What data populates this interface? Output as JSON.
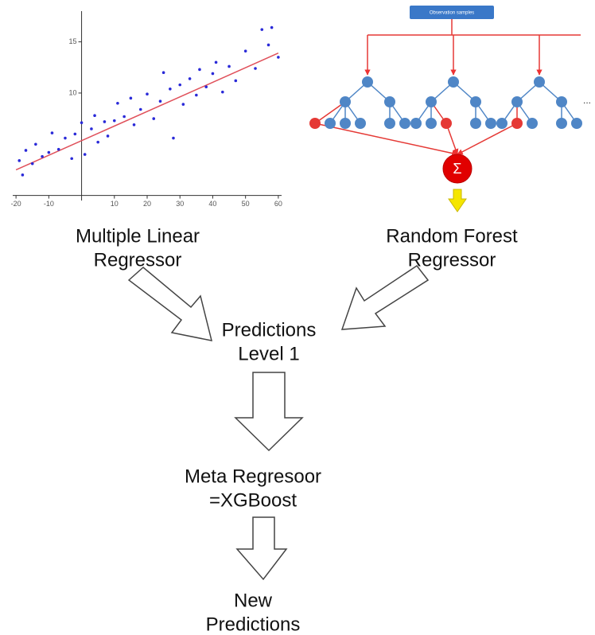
{
  "scatter": {
    "type": "scatter",
    "x": [
      -19,
      -18,
      -17,
      -15,
      -14,
      -12,
      -10,
      -9,
      -7,
      -5,
      -3,
      -2,
      0,
      1,
      3,
      4,
      5,
      7,
      8,
      10,
      11,
      13,
      15,
      16,
      18,
      20,
      22,
      24,
      25,
      27,
      28,
      30,
      31,
      33,
      35,
      36,
      38,
      40,
      41,
      43,
      45,
      47,
      50,
      53,
      55,
      57,
      58,
      60
    ],
    "y": [
      3.4,
      2.0,
      4.4,
      3.1,
      5.0,
      3.8,
      4.2,
      6.1,
      4.5,
      5.6,
      3.6,
      6.0,
      7.1,
      4.0,
      6.5,
      7.8,
      5.2,
      7.2,
      5.8,
      7.3,
      9.0,
      7.7,
      9.5,
      6.9,
      8.4,
      9.9,
      7.5,
      9.2,
      12.0,
      10.4,
      5.6,
      10.8,
      8.9,
      11.4,
      9.8,
      12.3,
      10.6,
      11.9,
      13.0,
      10.1,
      12.6,
      11.2,
      14.1,
      12.4,
      16.2,
      14.7,
      16.4,
      13.5
    ],
    "xlim": [
      -21,
      61
    ],
    "ylim": [
      -0.5,
      18
    ],
    "xticks": [
      -20,
      -10,
      10,
      20,
      30,
      40,
      50,
      60
    ],
    "yticks": [
      10,
      15
    ],
    "color": "#2a2ad8",
    "fit": {
      "x": [
        -20,
        60
      ],
      "y": [
        2.5,
        13.9
      ],
      "color": "#e0505a"
    }
  },
  "forest": {
    "input_label": "Observation samples",
    "sum_label": "Σ",
    "ellipsis": "..."
  },
  "labels": {
    "mlr": [
      "Multiple Linear",
      "Regressor"
    ],
    "rf": [
      "Random Forest",
      "Regressor"
    ],
    "level1": [
      "Predictions",
      "Level 1"
    ],
    "meta": [
      "Meta Regresoor",
      "=XGBoost"
    ],
    "output": [
      "New",
      "Predictions"
    ]
  }
}
